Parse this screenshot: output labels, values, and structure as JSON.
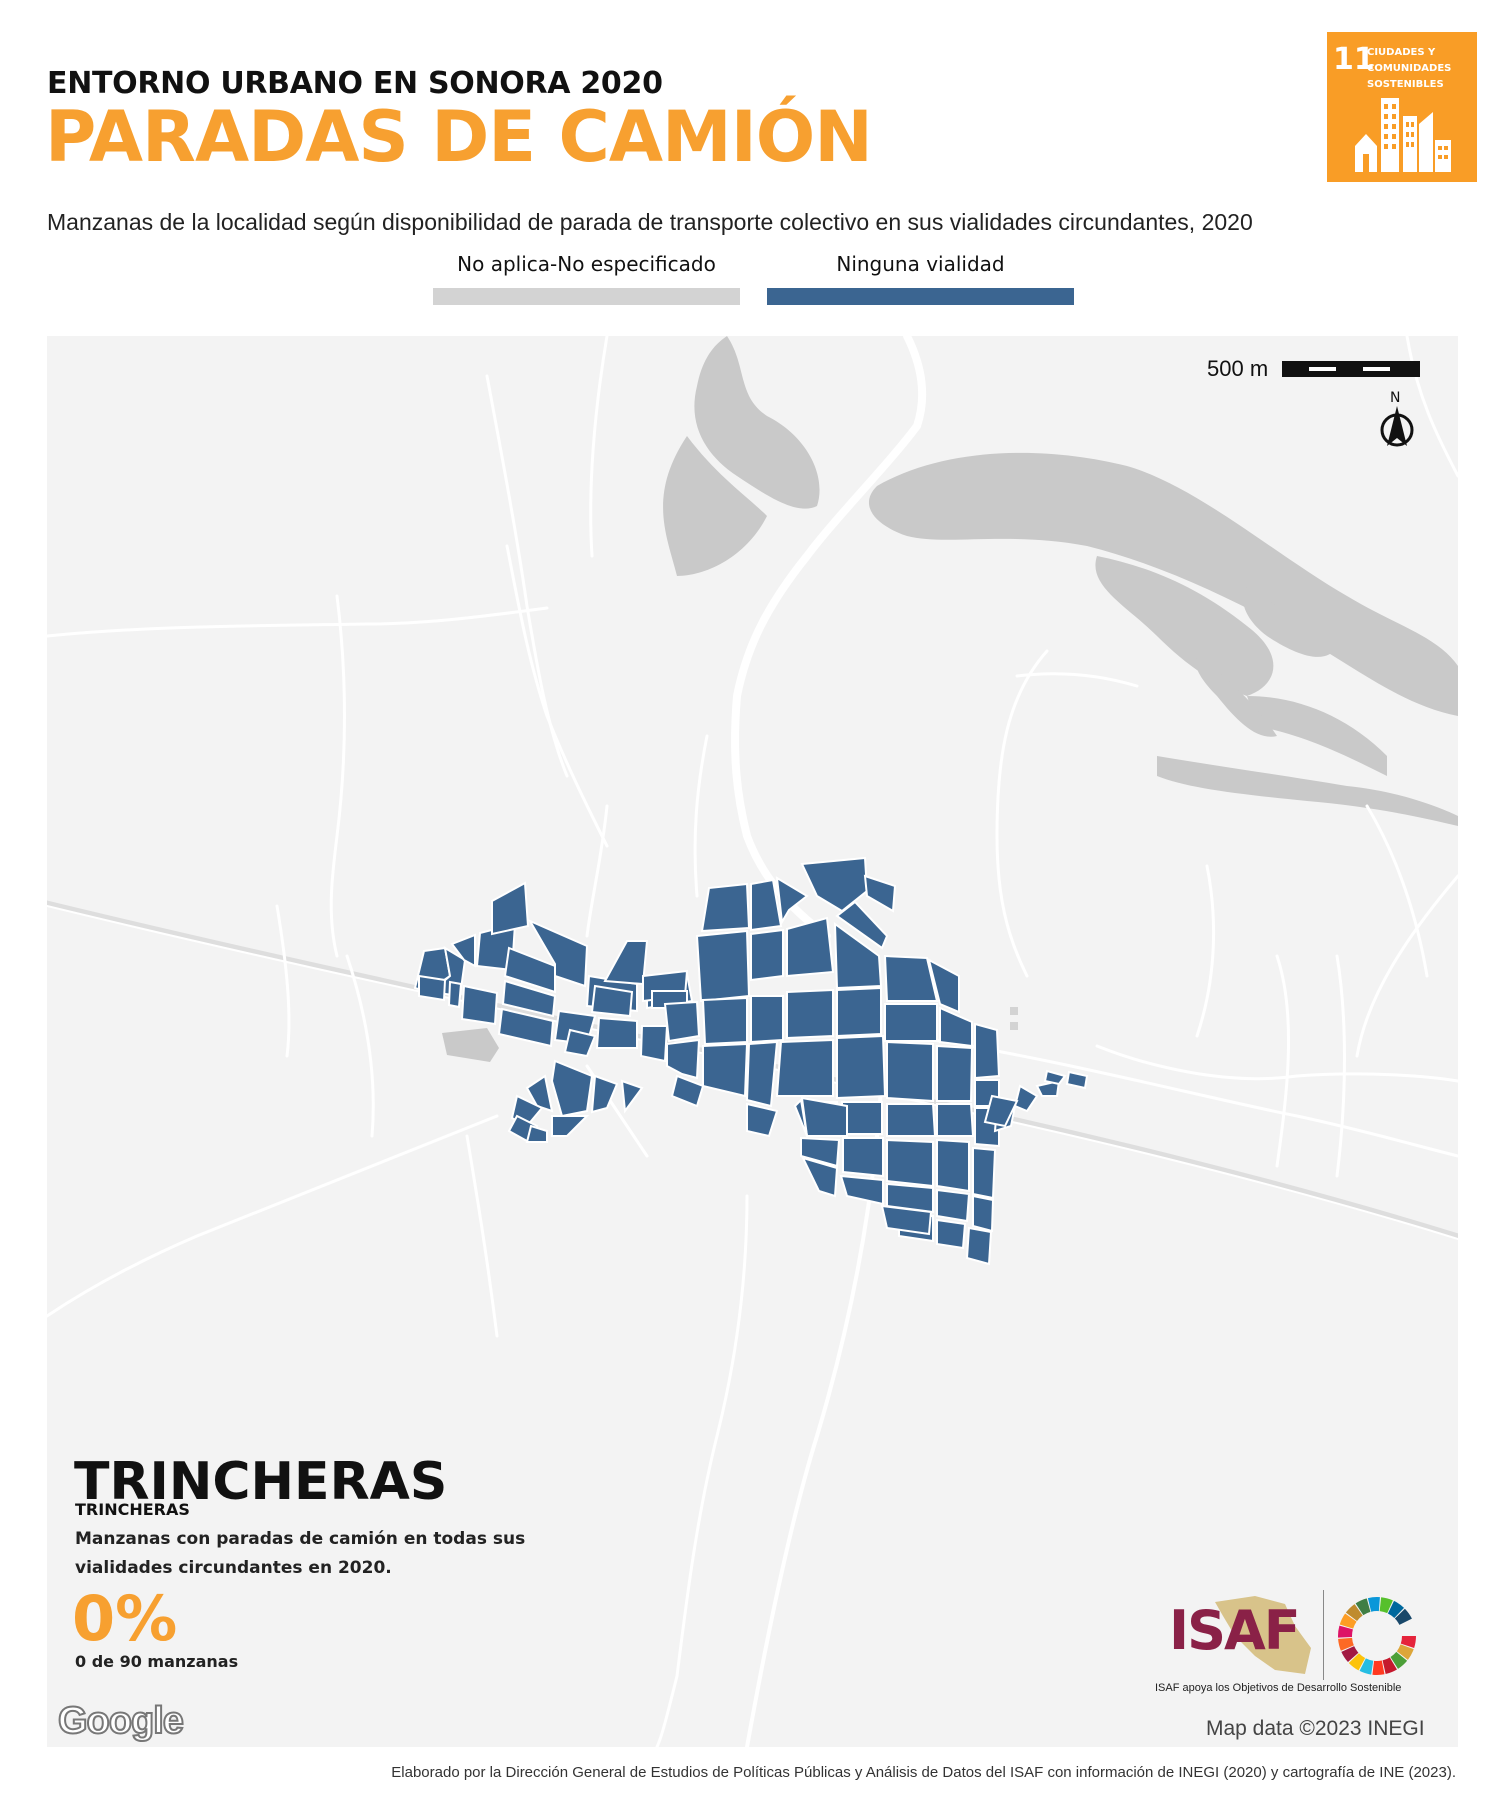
{
  "header": {
    "subtitle": "ENTORNO URBANO EN SONORA 2020",
    "title": "PARADAS DE CAMIÓN",
    "description": "Manzanas de la localidad según disponibilidad de parada de transporte colectivo en sus vialidades circundantes, 2020"
  },
  "legend": {
    "items": [
      {
        "label": "No aplica-No especificado",
        "color": "#d3d3d3"
      },
      {
        "label": "Ninguna vialidad",
        "color": "#3b6591"
      }
    ]
  },
  "sdg_badge": {
    "number": "11",
    "line1": "CIUDADES Y",
    "line2": "COMUNIDADES",
    "line3": "SOSTENIBLES",
    "color": "#f99d26"
  },
  "map": {
    "scale_label": "500 m",
    "north_label": "N",
    "attribution": "Map data ©2023 INEGI",
    "provider": "Google",
    "block_color": "#3b6591",
    "water_color": "#c9c9c9",
    "land_color": "#f3f3f3"
  },
  "place": {
    "municipality": "TRINCHERAS",
    "locality": "TRINCHERAS"
  },
  "stat": {
    "description": "Manzanas con paradas de camión en todas sus vialidades circundantes en 2020.",
    "value": "0%",
    "count": "0 de 90 manzanas"
  },
  "isaf": {
    "name": "ISAF",
    "caption": "ISAF apoya los Objetivos de Desarrollo Sostenible"
  },
  "footer": {
    "credit": "Elaborado por la Dirección General de Estudios de Políticas Públicas y Análisis de Datos del ISAF con información de INEGI (2020) y cartografía de INE (2023)."
  }
}
